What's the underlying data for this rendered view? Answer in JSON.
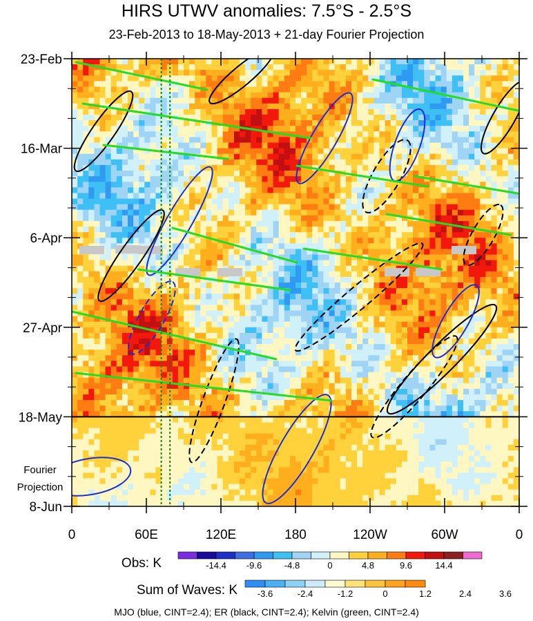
{
  "chart_data": {
    "type": "heatmap",
    "title": "HIRS UTWV anomalies: 7.5°S - 2.5°S",
    "subtitle": "23-Feb-2013 to 18-May-2013 + 21-day Fourier Projection",
    "x_tick_labels": [
      "0",
      "60E",
      "120E",
      "180",
      "120W",
      "60W",
      "0"
    ],
    "x_tick_values_deg_east": [
      0,
      60,
      120,
      180,
      240,
      300,
      360
    ],
    "y_tick_labels": [
      "23-Feb",
      "16-Mar",
      "6-Apr",
      "27-Apr",
      "18-May",
      "8-Jun"
    ],
    "y_tick_values_day": [
      0,
      21,
      42,
      63,
      84,
      105
    ],
    "projection_label_line1": "Fourier",
    "projection_label_line2": "Projection",
    "projection_start_day": 84,
    "xlim": [
      0,
      360
    ],
    "ylim_days": [
      0,
      105
    ],
    "reference_longitudes_deg_east": [
      72,
      79
    ],
    "obs_colorbar": {
      "label": "Obs: K",
      "tick_labels": [
        "-14.4",
        "-9.6",
        "-4.8",
        "0",
        "4.8",
        "9.6",
        "14.4"
      ],
      "colors": [
        "#7a2ee0",
        "#1a0a99",
        "#1e2fc8",
        "#3d6fe0",
        "#2e9af2",
        "#3fc0f5",
        "#9fd4f5",
        "#d0f0fa",
        "#fff7c2",
        "#ffd23c",
        "#ffae1e",
        "#ff7c12",
        "#f2190c",
        "#c10f12",
        "#8c2020",
        "#f06ad0"
      ]
    },
    "waves_colorbar": {
      "label": "Sum of Waves: K",
      "tick_labels": [
        "-3.6",
        "-2.4",
        "-1.2",
        "0",
        "1.2",
        "2.4",
        "3.6"
      ],
      "colors": [
        "#2e8ef5",
        "#4cb0f5",
        "#8cd2f7",
        "#cdecf9",
        "#fff9cf",
        "#ffe27a",
        "#ffc43a",
        "#ffa21c",
        "#ff8a12"
      ]
    },
    "footnote": "MJO (blue, CINT=2.4); ER (black, CINT=2.4); Kelvin (green, CINT=2.4)",
    "series": [
      {
        "name": "MJO",
        "color": "#1a2fd0"
      },
      {
        "name": "ER",
        "color": "#000000"
      },
      {
        "name": "Kelvin",
        "color": "#22dd22"
      }
    ]
  }
}
